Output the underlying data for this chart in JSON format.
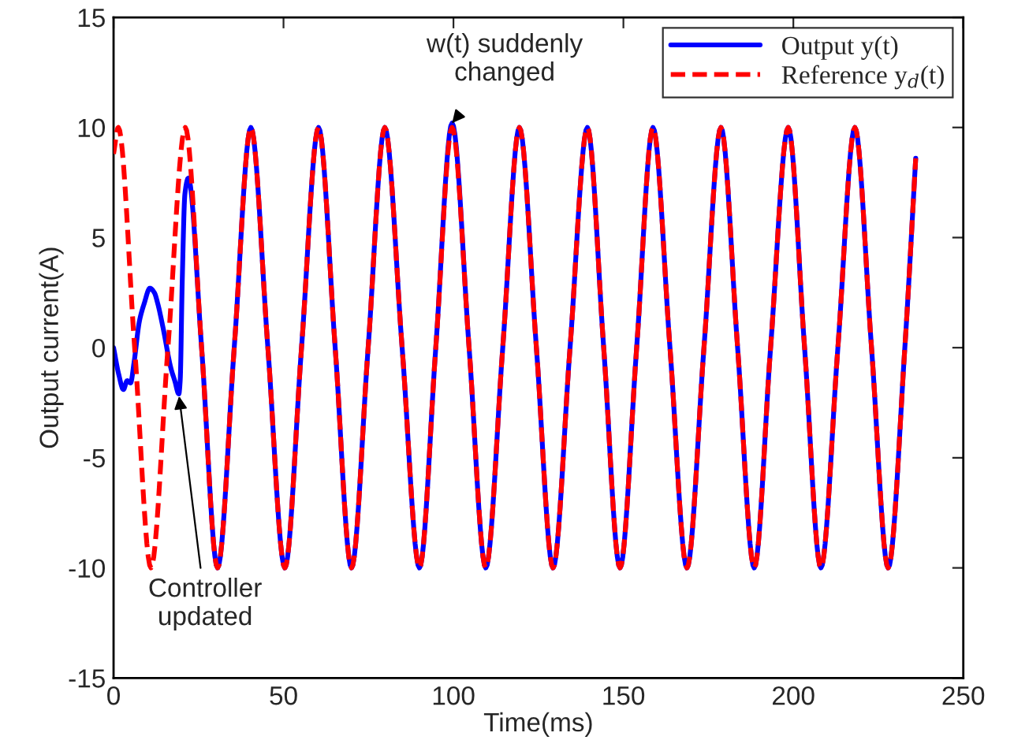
{
  "chart_data": {
    "type": "line",
    "xlabel": "Time(ms)",
    "ylabel": "Output current(A)",
    "xlim": [
      0,
      250
    ],
    "xticks": [
      0,
      50,
      100,
      150,
      200,
      250
    ],
    "ylim": [
      -15,
      15
    ],
    "yticks": [
      -15,
      -10,
      -5,
      0,
      5,
      10,
      15
    ],
    "grid": false,
    "legend": "top right",
    "marker": "none",
    "series": [
      {
        "name": "Output y(t)",
        "color": "#0000ff",
        "line_style": "solid",
        "x": [
          0,
          1.5,
          2.9,
          4,
          5,
          6,
          7.6,
          9,
          10.7,
          12,
          13,
          14.5,
          16.9,
          18,
          19.2,
          19.6,
          20.2,
          21,
          22,
          25.9,
          30.6,
          35.5,
          40.4,
          45.4,
          50.4,
          55.3,
          60.3,
          65.2,
          70,
          74.9,
          79.8,
          84.9,
          90,
          94.8,
          99.6,
          104.6,
          109.5,
          114.5,
          119.4,
          124.4,
          129.3,
          134.3,
          139.4,
          144.2,
          149,
          153.9,
          158.7,
          163.7,
          168.7,
          173.7,
          178.7,
          183.6,
          188.5,
          193.3,
          198.5,
          203.3,
          208.1,
          213.1,
          218.1,
          223,
          227.9,
          232.8,
          236
        ],
        "values": [
          0,
          -1.2,
          -1.9,
          -1.5,
          -1.6,
          -0.7,
          1.2,
          2,
          2.7,
          2.5,
          2,
          0.95,
          -0.95,
          -1.5,
          -2.1,
          -1.5,
          3,
          7,
          7.7,
          0,
          -10,
          0,
          10,
          0,
          -10,
          0,
          10,
          0,
          -10,
          0,
          10,
          0,
          -10,
          0,
          10.2,
          0,
          -10,
          0,
          10,
          0,
          -10,
          0,
          10,
          0,
          -10,
          0,
          10,
          0,
          -10,
          0,
          10,
          0,
          -10,
          0,
          10,
          0,
          -10,
          0,
          10,
          0,
          -10,
          0,
          8.6
        ]
      },
      {
        "name": "Reference y$_{d}$(t)",
        "color": "#ff0000",
        "line_style": "dashed",
        "x": [
          0,
          1.4,
          6.2,
          11,
          16,
          21.1,
          25.9,
          30.6,
          35.5,
          40.4,
          45.4,
          50.4,
          55.3,
          60.3,
          65.2,
          70,
          74.9,
          79.8,
          84.9,
          90,
          94.8,
          99.6,
          104.6,
          109.5,
          114.5,
          119.4,
          124.4,
          129.3,
          134.3,
          139.4,
          144.2,
          149,
          153.9,
          158.7,
          163.7,
          168.7,
          173.7,
          178.7,
          183.6,
          188.5,
          193.3,
          198.5,
          203.3,
          208.1,
          213.1,
          218.1,
          223,
          227.9,
          232.8,
          236
        ],
        "values": [
          8.8,
          10,
          0,
          -10,
          0,
          10,
          0,
          -10,
          0,
          10,
          0,
          -10,
          0,
          10,
          0,
          -10,
          0,
          10,
          0,
          -10,
          0,
          10,
          0,
          -10,
          0,
          10,
          0,
          -10,
          0,
          10,
          0,
          -10,
          0,
          10,
          0,
          -10,
          0,
          10,
          0,
          -10,
          0,
          10,
          0,
          -10,
          0,
          10,
          0,
          -10,
          0,
          8.6
        ]
      }
    ],
    "annotations": [
      {
        "text": "w(t) suddenly\nchanged",
        "x": 99.6,
        "y": 10.2
      },
      {
        "text": "Controller\nupdated",
        "x": 19.2,
        "y": -2.1
      }
    ]
  }
}
